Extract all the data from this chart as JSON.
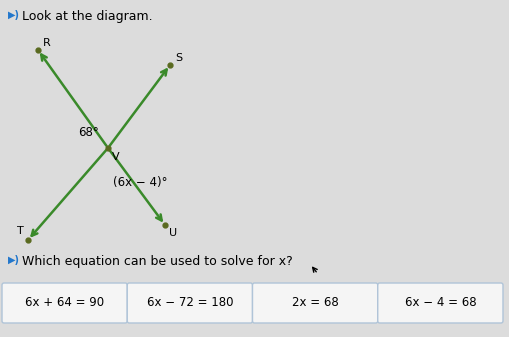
{
  "title": "Look at the diagram.",
  "bg_color": "#dcdcdc",
  "line_color": "#3a8a2a",
  "dot_color": "#5a6a20",
  "upper_angle_label": "68°",
  "lower_angle_label": "(6x − 4)°",
  "question_text": "Which equation can be used to solve for x?",
  "answers": [
    "6x + 64 = 90",
    "6x − 72 = 180",
    "2x = 68",
    "6x − 4 = 68"
  ],
  "answer_box_color": "#f5f5f5",
  "answer_border_color": "#b0c4d8",
  "answer_highlight": [
    false,
    false,
    false,
    false
  ],
  "highlight_color": "#cfe3f5"
}
